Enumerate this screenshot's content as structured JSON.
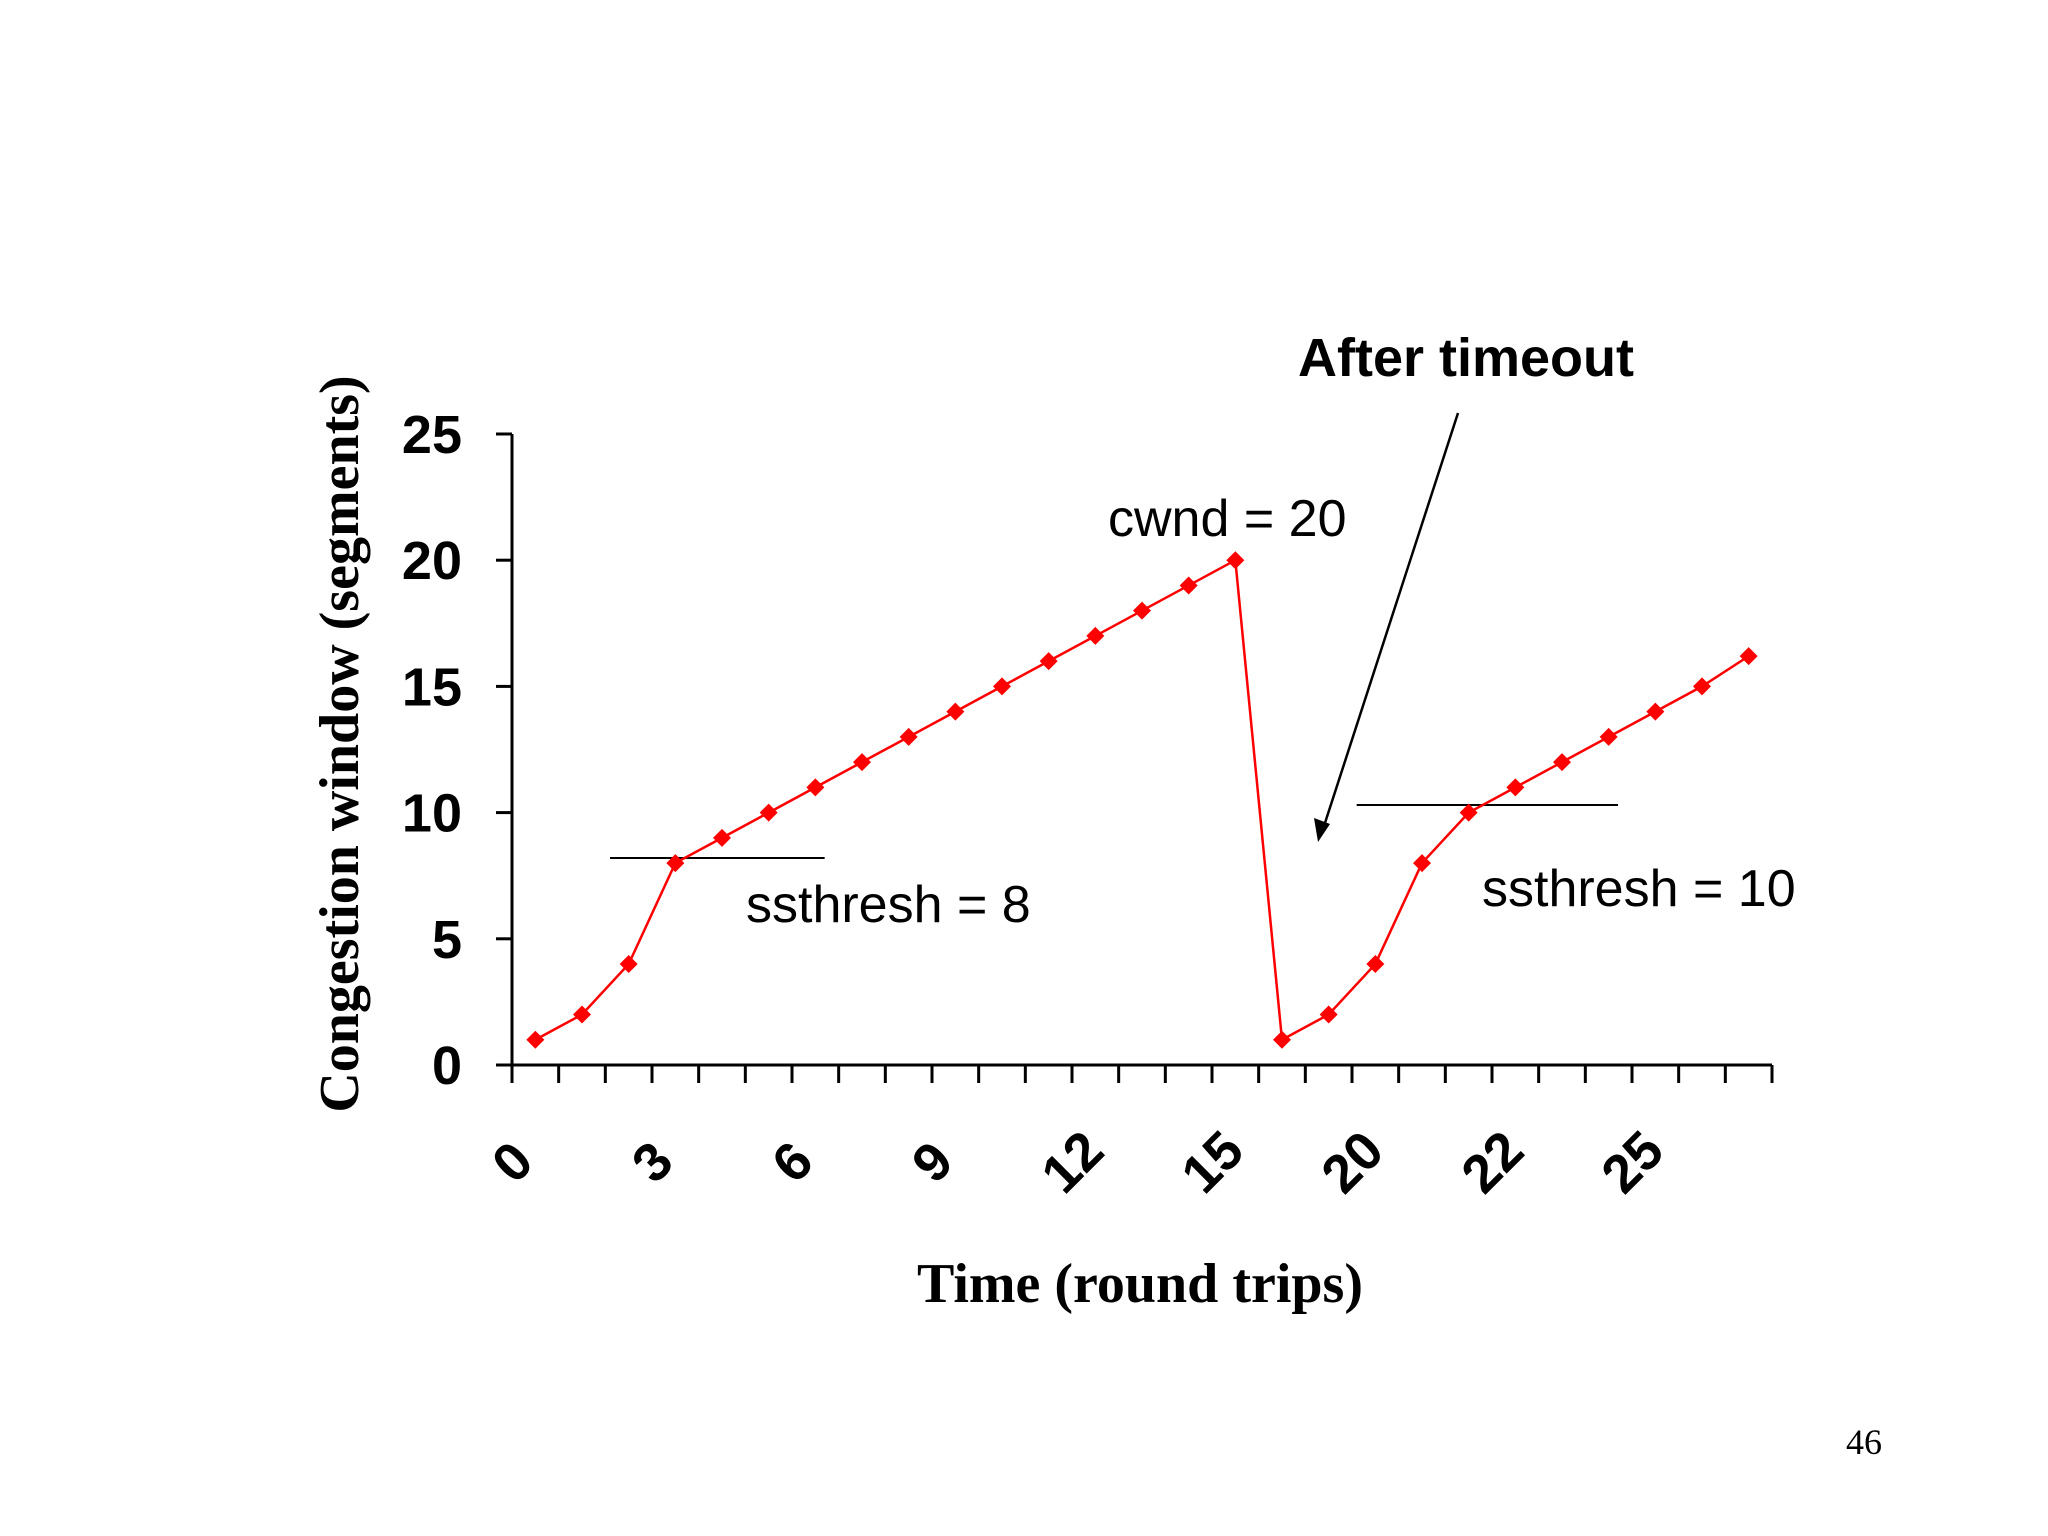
{
  "colors": {
    "series": "#ff0000",
    "axis": "#000000",
    "text": "#000000"
  },
  "chart_data": {
    "type": "line",
    "title": "",
    "xlabel": "Time (round trips)",
    "ylabel": "Congestion window (segments)",
    "ylim": [
      0,
      25
    ],
    "yticks": [
      "0",
      "5",
      "10",
      "15",
      "20",
      "25"
    ],
    "ytick_values": [
      0,
      5,
      10,
      15,
      20,
      25
    ],
    "x_slots": 27,
    "x_tick_labels": [
      {
        "slot": 0,
        "label": "0"
      },
      {
        "slot": 3,
        "label": "3"
      },
      {
        "slot": 6,
        "label": "6"
      },
      {
        "slot": 9,
        "label": "9"
      },
      {
        "slot": 12,
        "label": "12"
      },
      {
        "slot": 15,
        "label": "15"
      },
      {
        "slot": 18,
        "label": "20"
      },
      {
        "slot": 21,
        "label": "22"
      },
      {
        "slot": 24,
        "label": "25"
      }
    ],
    "series": [
      {
        "name": "cwnd",
        "marker": "diamond",
        "values": [
          1,
          2,
          4,
          8,
          9,
          10,
          11,
          12,
          13,
          14,
          15,
          16,
          17,
          18,
          19,
          20,
          1,
          2,
          4,
          8,
          10,
          11,
          12,
          13,
          14,
          15,
          16.2
        ]
      }
    ],
    "thresholds": [
      {
        "value": 8.2,
        "from_slot": 2,
        "to_slot": 6,
        "label": "ssthresh = 8"
      },
      {
        "value": 10.3,
        "from_slot": 18,
        "to_slot": 23,
        "label": "ssthresh = 10"
      }
    ],
    "annotations": {
      "peak_label": "cwnd = 20",
      "after_timeout": "After timeout"
    }
  },
  "page_number": "46"
}
